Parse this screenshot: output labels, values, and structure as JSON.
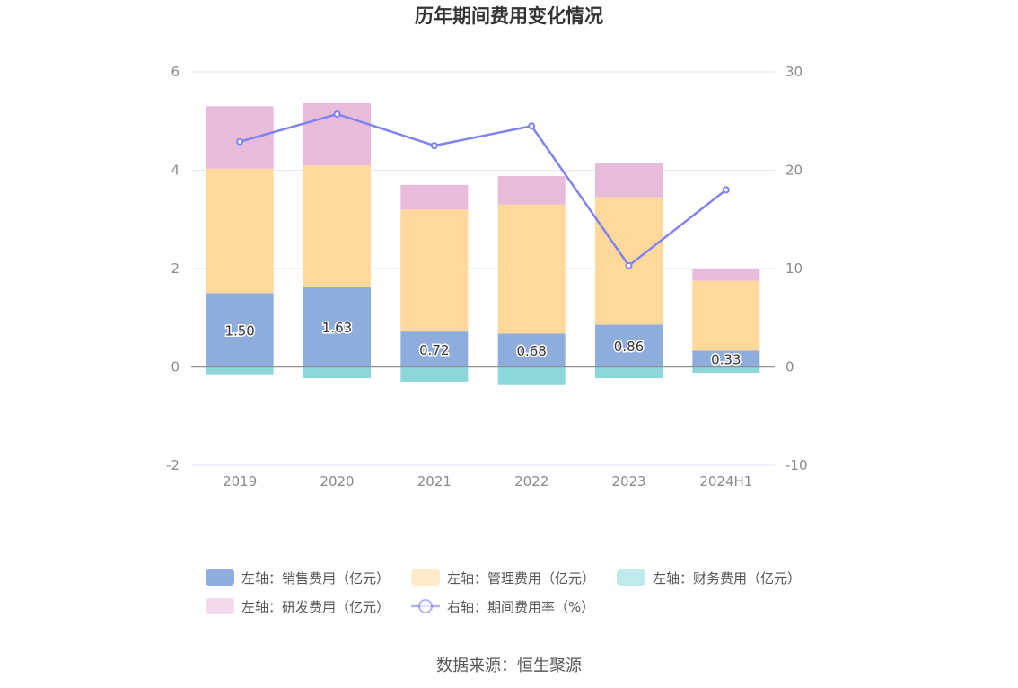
{
  "chart_data": {
    "type": "bar",
    "title": "历年期间费用变化情况",
    "categories": [
      "2019",
      "2020",
      "2021",
      "2022",
      "2023",
      "2024H1"
    ],
    "y_left": {
      "min": -2,
      "max": 6,
      "ticks": [
        "-2",
        "0",
        "2",
        "4",
        "6"
      ]
    },
    "y_right": {
      "min": -10,
      "max": 30,
      "ticks": [
        "-10",
        "0",
        "10",
        "20",
        "30"
      ]
    },
    "series": [
      {
        "name": "左轴：销售费用（亿元）",
        "type": "bar",
        "axis": "left",
        "color": "#8faddc",
        "values": [
          1.5,
          1.63,
          0.72,
          0.68,
          0.86,
          0.33
        ],
        "labels": [
          "1.50",
          "1.63",
          "0.72",
          "0.68",
          "0.86",
          "0.33"
        ]
      },
      {
        "name": "左轴：管理费用（亿元）",
        "type": "bar",
        "axis": "left",
        "color": "#ffd89c",
        "values": [
          2.53,
          2.47,
          2.48,
          2.62,
          2.59,
          1.42
        ]
      },
      {
        "name": "左轴：财务费用（亿元）",
        "type": "bar",
        "axis": "left",
        "color": "#8dd7da",
        "values": [
          -0.15,
          -0.23,
          -0.3,
          -0.37,
          -0.23,
          -0.12
        ]
      },
      {
        "name": "左轴：研发费用（亿元）",
        "type": "bar",
        "axis": "left",
        "color": "#e8bbdb",
        "values": [
          1.27,
          1.26,
          0.5,
          0.58,
          0.69,
          0.25
        ]
      },
      {
        "name": "右轴：期间费用率（%）",
        "type": "line",
        "axis": "right",
        "color": "#7f83ee",
        "values": [
          22.9,
          25.7,
          22.5,
          24.5,
          10.3,
          18.0
        ]
      }
    ],
    "legend_position": "bottom",
    "grid": true
  },
  "source": "数据来源：恒生聚源"
}
